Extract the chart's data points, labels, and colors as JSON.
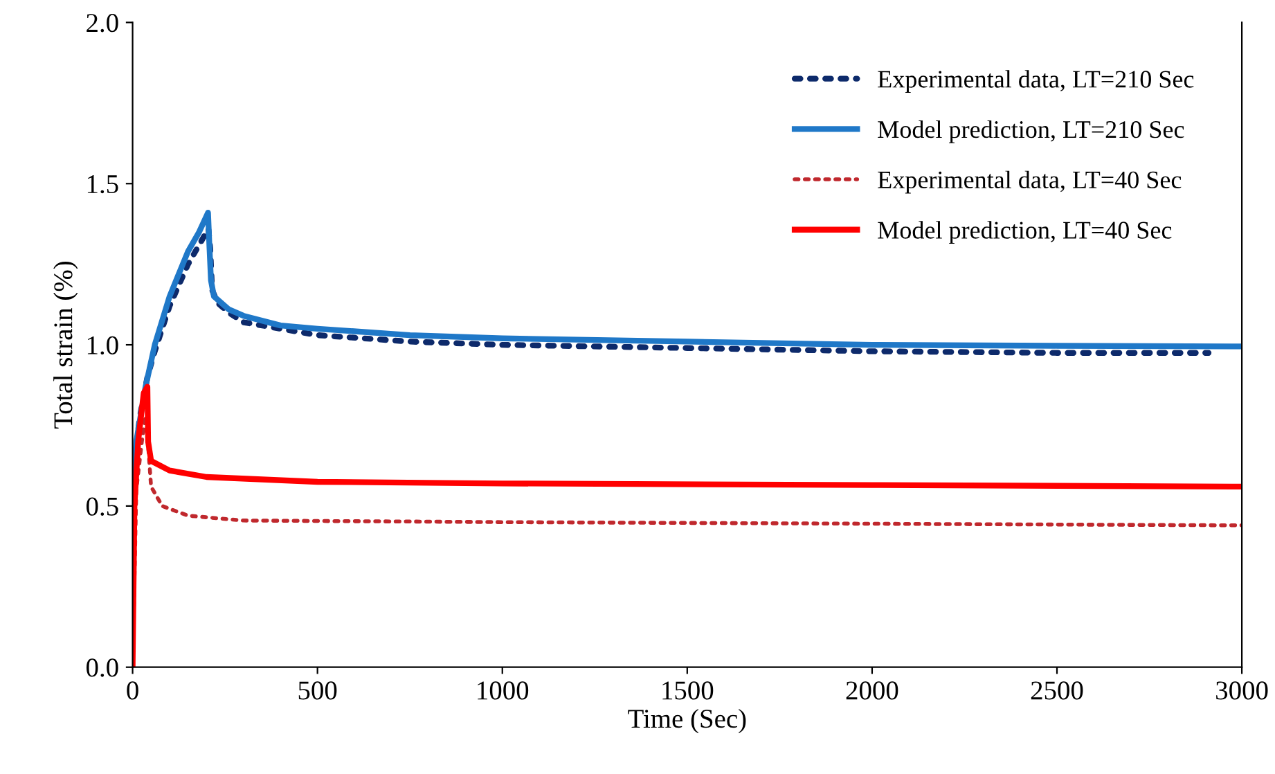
{
  "chart_data": {
    "type": "line",
    "xlabel": "Time (Sec)",
    "ylabel": "Total strain (%)",
    "xlim": [
      0,
      3000
    ],
    "xticks": [
      0,
      500,
      1000,
      1500,
      2000,
      2500,
      3000
    ],
    "ylim": [
      0,
      2.0
    ],
    "yticks": [
      {
        "value": 0,
        "label": "0.0"
      },
      {
        "value": 0.5,
        "label": "0.5"
      },
      {
        "value": 1.0,
        "label": "1.0"
      },
      {
        "value": 1.5,
        "label": "1.5"
      },
      {
        "value": 2.0,
        "label": "2.0"
      }
    ],
    "grid": false,
    "legend": "top right",
    "marker": "none",
    "series": [
      {
        "name": "Experimental data, LT=210 Sec",
        "color": "#0d2a6b",
        "line_style": "dotted",
        "x": [
          0,
          20,
          40,
          60,
          100,
          150,
          190,
          205,
          210,
          215,
          230,
          260,
          300,
          400,
          500,
          750,
          1000,
          1500,
          2000,
          2500,
          2910
        ],
        "values": [
          0.6,
          0.78,
          0.9,
          0.98,
          1.12,
          1.25,
          1.33,
          1.36,
          1.3,
          1.17,
          1.13,
          1.1,
          1.07,
          1.05,
          1.03,
          1.01,
          1.0,
          0.99,
          0.98,
          0.975,
          0.975
        ]
      },
      {
        "name": "Model prediction, LT=210 Sec",
        "color": "#1f78c8",
        "line_style": "solid",
        "x": [
          0,
          10,
          35,
          60,
          100,
          150,
          180,
          204,
          208,
          212,
          220,
          260,
          300,
          400,
          500,
          750,
          1000,
          1500,
          2000,
          2500,
          3000
        ],
        "values": [
          0.55,
          0.7,
          0.87,
          1.0,
          1.15,
          1.29,
          1.35,
          1.41,
          1.3,
          1.2,
          1.15,
          1.11,
          1.09,
          1.06,
          1.05,
          1.03,
          1.02,
          1.01,
          1.0,
          0.997,
          0.995
        ]
      },
      {
        "name": "Experimental data, LT=40 Sec",
        "color": "#c0282d",
        "line_style": "dotted",
        "x": [
          0,
          10,
          25,
          35,
          40,
          50,
          80,
          150,
          300,
          1000,
          2000,
          3000
        ],
        "values": [
          0,
          0.55,
          0.7,
          0.78,
          0.72,
          0.56,
          0.5,
          0.47,
          0.455,
          0.45,
          0.445,
          0.44
        ]
      },
      {
        "name": "Model prediction, LT=40 Sec",
        "color": "#ff0000",
        "line_style": "solid",
        "x": [
          0,
          5,
          15,
          30,
          40,
          42,
          50,
          100,
          200,
          500,
          1000,
          2000,
          3000
        ],
        "values": [
          0,
          0.5,
          0.7,
          0.85,
          0.87,
          0.7,
          0.64,
          0.61,
          0.59,
          0.575,
          0.57,
          0.565,
          0.56
        ]
      }
    ]
  }
}
